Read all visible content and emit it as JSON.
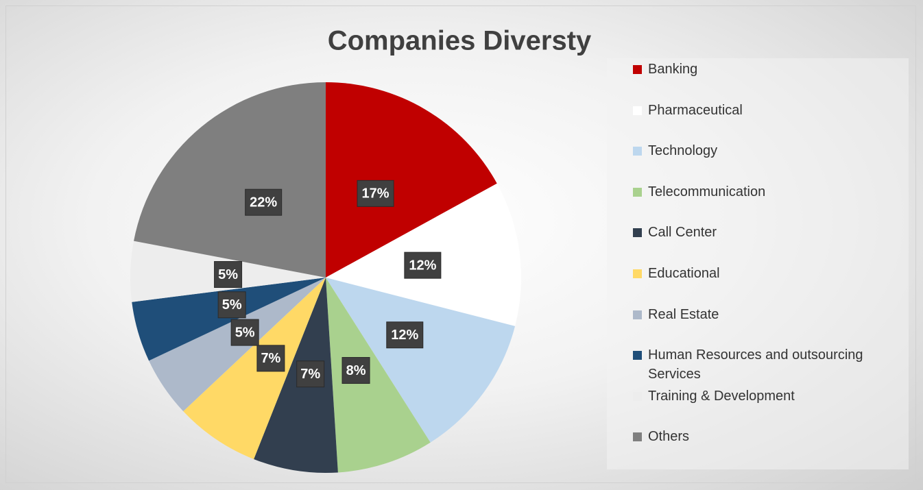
{
  "chart_data": {
    "type": "pie",
    "title": "Companies Diversty",
    "categories": [
      "Banking",
      "Pharmaceutical",
      "Technology",
      "Telecommunication",
      "Call Center",
      "Educational",
      "Real Estate",
      "Human Resources and outsourcing Services",
      "Training & Development",
      "Others"
    ],
    "values": [
      17,
      12,
      12,
      8,
      7,
      7,
      5,
      5,
      5,
      22
    ],
    "value_labels": [
      "17%",
      "12%",
      "12%",
      "8%",
      "7%",
      "7%",
      "5%",
      "5%",
      "5%",
      "22%"
    ],
    "colors": [
      "#c00000",
      "#ffffff",
      "#bdd7ee",
      "#a9d18e",
      "#323f4f",
      "#ffd966",
      "#adb9ca",
      "#1f4e79",
      "#ededed",
      "#7f7f7f"
    ],
    "legend": "right"
  }
}
